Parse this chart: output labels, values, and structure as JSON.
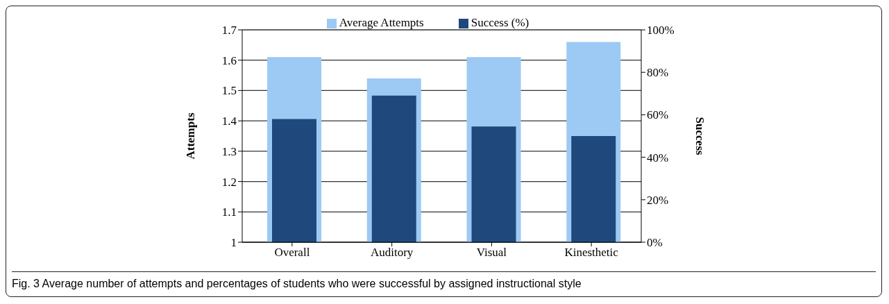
{
  "chart_data": {
    "type": "bar",
    "categories": [
      "Overall",
      "Auditory",
      "Visual",
      "Kinesthetic"
    ],
    "series": [
      {
        "name": "Average Attempts",
        "color": "#9ccaf4",
        "values": [
          1.61,
          1.54,
          1.61,
          1.66
        ]
      },
      {
        "name": "Success (%)",
        "color": "#1f497d",
        "values": [
          58,
          69,
          54.5,
          50
        ],
        "axis": "y2"
      }
    ],
    "ylabel": "Attempts",
    "y2label": "Success",
    "ylim": [
      1,
      1.7
    ],
    "yticks": [
      1,
      1.1,
      1.2,
      1.3,
      1.4,
      1.5,
      1.6,
      1.7
    ],
    "y2lim": [
      0,
      100
    ],
    "y2ticks": [
      {
        "value": 0,
        "label": "0%"
      },
      {
        "value": 20,
        "label": "20%"
      },
      {
        "value": 40,
        "label": "40%"
      },
      {
        "value": 60,
        "label": "60%"
      },
      {
        "value": 80,
        "label": "80%"
      },
      {
        "value": 100,
        "label": "100%"
      }
    ],
    "grid": "y",
    "legend": "top",
    "annotations": [
      "Fig. 3 Average number of attempts and percentages of students who were successful by assigned instructional style"
    ]
  }
}
